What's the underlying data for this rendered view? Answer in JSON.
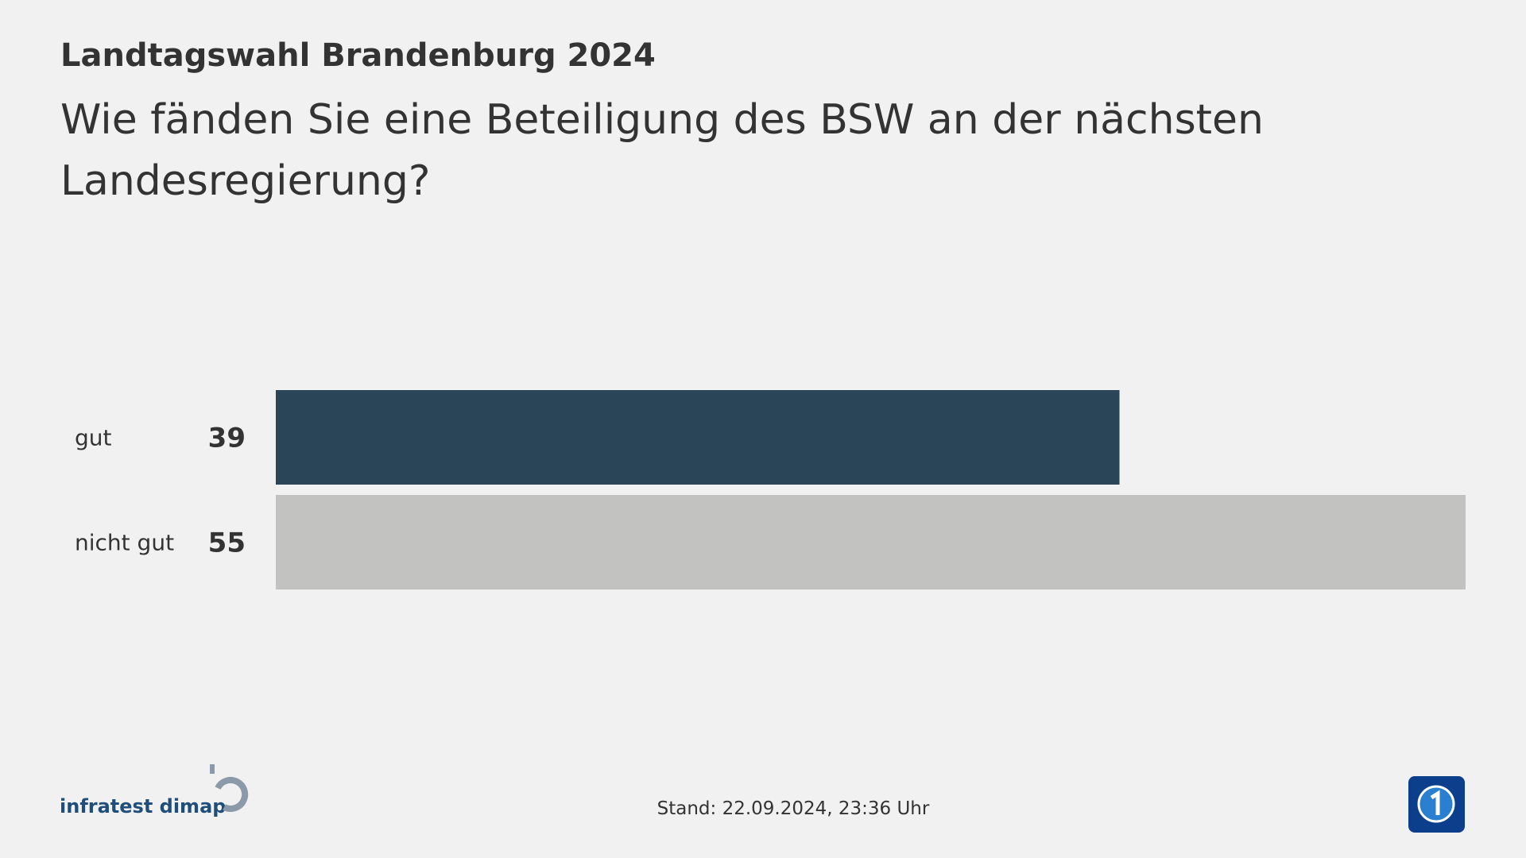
{
  "chart_data": {
    "type": "bar",
    "orientation": "horizontal",
    "title": "Landtagswahl Brandenburg 2024",
    "subtitle": [
      "Wie fänden Sie eine Beteiligung des BSW an der nächsten",
      "Landesregierung?"
    ],
    "categories": [
      "gut",
      "nicht gut"
    ],
    "values": [
      39,
      55
    ],
    "colors": [
      "#2b4558",
      "#c2c2c1"
    ],
    "source": "infratest dimap",
    "footer": "Stand:  22.09.2024, 23:36 Uhr"
  }
}
